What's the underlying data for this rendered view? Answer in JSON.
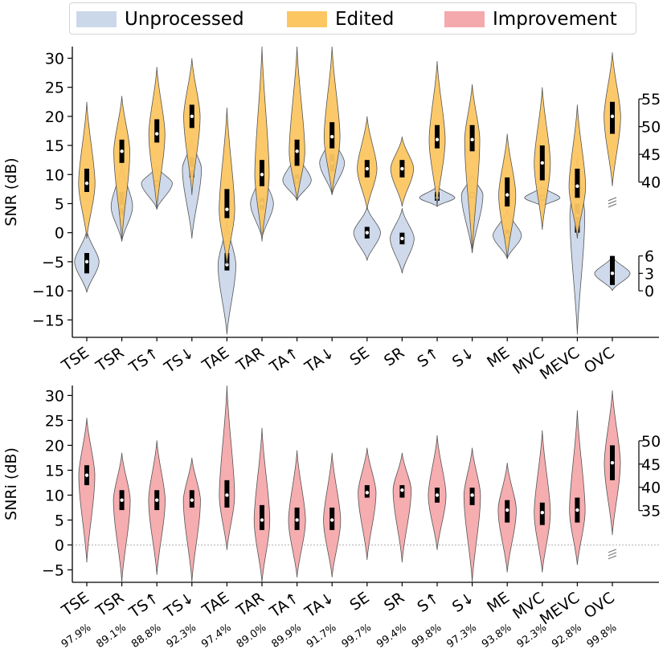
{
  "legend": {
    "items": [
      {
        "label": "Unprocessed",
        "color": "#cbd8ea"
      },
      {
        "label": "Edited",
        "color": "#fcc662"
      },
      {
        "label": "Improvement",
        "color": "#f4a9ac"
      }
    ]
  },
  "chart_data": [
    {
      "type": "violin",
      "ylabel": "SNR (dB)",
      "ylim": [
        -18,
        32
      ],
      "yticks": [
        -15,
        -10,
        -5,
        0,
        5,
        10,
        15,
        20,
        25,
        30
      ],
      "categories": [
        "TSE",
        "TSR",
        "TS↑",
        "TS↓",
        "TAE",
        "TAR",
        "TA↑",
        "TA↓",
        "SE",
        "SR",
        "S↑",
        "S↓",
        "ME",
        "MVC",
        "MEVC",
        "OVC"
      ],
      "series": [
        {
          "name": "Unprocessed",
          "color": "#cbd8ea",
          "medians": [
            -5,
            4.5,
            8.5,
            11,
            -5.5,
            5,
            9,
            12,
            0,
            -1,
            6,
            6.5,
            -0.5,
            6,
            3,
            -7
          ],
          "iqr": [
            [
              -7,
              -3.5
            ],
            [
              3,
              7
            ],
            [
              8,
              9
            ],
            [
              9.5,
              13
            ],
            [
              -6.5,
              -3.5
            ],
            [
              4,
              6
            ],
            [
              8.5,
              10
            ],
            [
              10.5,
              13.5
            ],
            [
              -1,
              1
            ],
            [
              -2,
              0
            ],
            [
              5.5,
              7
            ],
            [
              6,
              7
            ],
            [
              -1,
              0.5
            ],
            [
              5.5,
              6.5
            ],
            [
              0,
              5
            ],
            [
              -9,
              -4
            ]
          ],
          "range": [
            [
              -10.3,
              0.5
            ],
            [
              -1.5,
              12
            ],
            [
              4,
              11.5
            ],
            [
              -1,
              16
            ],
            [
              -17.5,
              2
            ],
            [
              -1,
              11
            ],
            [
              5.5,
              14
            ],
            [
              6.5,
              17
            ],
            [
              -4.8,
              4.5
            ],
            [
              -7,
              4.2
            ],
            [
              4.5,
              8
            ],
            [
              -3.5,
              10
            ],
            [
              -4.5,
              4
            ],
            [
              4.5,
              8
            ],
            [
              -17.5,
              13
            ],
            [
              -10,
              -4
            ]
          ]
        },
        {
          "name": "Edited",
          "color": "#fcc662",
          "medians": [
            8.5,
            14,
            17,
            20,
            4,
            10,
            14,
            16.5,
            11,
            11,
            16,
            16,
            6.5,
            12,
            8,
            20
          ],
          "iqr": [
            [
              7,
              11
            ],
            [
              12,
              16
            ],
            [
              15.5,
              19.5
            ],
            [
              18,
              22
            ],
            [
              2.5,
              7.5
            ],
            [
              8,
              12.5
            ],
            [
              11.5,
              16
            ],
            [
              14.5,
              19
            ],
            [
              9.5,
              12.5
            ],
            [
              9.5,
              12.5
            ],
            [
              14.5,
              18.5
            ],
            [
              14,
              18.5
            ],
            [
              4.5,
              9.5
            ],
            [
              9,
              15
            ],
            [
              6,
              11
            ],
            [
              17,
              22.5
            ]
          ],
          "range": [
            [
              -1,
              22.5
            ],
            [
              -1.5,
              23.5
            ],
            [
              4,
              28.5
            ],
            [
              6.5,
              30
            ],
            [
              -5.5,
              21.5
            ],
            [
              -1.5,
              32
            ],
            [
              5.5,
              32
            ],
            [
              6.5,
              32
            ],
            [
              4,
              20
            ],
            [
              4.5,
              16.5
            ],
            [
              4.5,
              29.5
            ],
            [
              -3.5,
              25.5
            ],
            [
              -4.5,
              17
            ],
            [
              0.5,
              25
            ],
            [
              -1,
              22
            ],
            [
              8,
              31
            ]
          ]
        }
      ],
      "inset_axis": {
        "ticks": [
          40,
          45,
          50,
          55
        ],
        "minor_ticks": [
          0,
          3,
          6
        ],
        "note": "broken axis marker on OVC"
      }
    },
    {
      "type": "violin",
      "ylabel": "SNRi (dB)",
      "ylim": [
        -7.5,
        32
      ],
      "yticks": [
        -5,
        0,
        5,
        10,
        15,
        20,
        25,
        30
      ],
      "categories": [
        "TSE",
        "TSR",
        "TS↑",
        "TS↓",
        "TAE",
        "TAR",
        "TA↑",
        "TA↓",
        "SE",
        "SR",
        "S↑",
        "S↓",
        "ME",
        "MVC",
        "MEVC",
        "OVC"
      ],
      "percentages": [
        "97.9%",
        "89.1%",
        "88.8%",
        "92.3%",
        "97.4%",
        "89.0%",
        "89.9%",
        "91.7%",
        "99.7%",
        "99.4%",
        "99.8%",
        "97.3%",
        "93.8%",
        "92.3%",
        "92.8%",
        "99.8%"
      ],
      "series": [
        {
          "name": "Improvement",
          "color": "#f4a9ac",
          "medians": [
            14,
            9,
            9,
            9,
            10,
            5,
            5,
            5,
            10.5,
            11,
            10,
            10,
            7,
            6.5,
            7,
            16.5
          ],
          "iqr": [
            [
              12,
              16
            ],
            [
              7,
              11
            ],
            [
              7,
              11
            ],
            [
              7.5,
              11
            ],
            [
              7.5,
              13
            ],
            [
              3,
              8
            ],
            [
              3,
              7.5
            ],
            [
              3,
              7.5
            ],
            [
              9.5,
              12
            ],
            [
              9.5,
              12
            ],
            [
              8.5,
              11.5
            ],
            [
              8,
              11.5
            ],
            [
              4.5,
              9
            ],
            [
              4,
              8.5
            ],
            [
              4.5,
              9.5
            ],
            [
              13,
              20
            ]
          ],
          "range": [
            [
              -3.5,
              25.5
            ],
            [
              -7.5,
              18.5
            ],
            [
              -6,
              21
            ],
            [
              -7.5,
              17.5
            ],
            [
              -1,
              32
            ],
            [
              -7.5,
              23.5
            ],
            [
              -6.5,
              19
            ],
            [
              -6.5,
              18.5
            ],
            [
              -3,
              19.5
            ],
            [
              -3.5,
              18.5
            ],
            [
              -1,
              22
            ],
            [
              -7.5,
              19.5
            ],
            [
              -5.5,
              16.5
            ],
            [
              -5.5,
              23
            ],
            [
              -4,
              27
            ],
            [
              2,
              31
            ]
          ]
        }
      ],
      "inset_axis": {
        "ticks": [
          35,
          40,
          45,
          50
        ]
      },
      "reference_line": 0
    }
  ]
}
